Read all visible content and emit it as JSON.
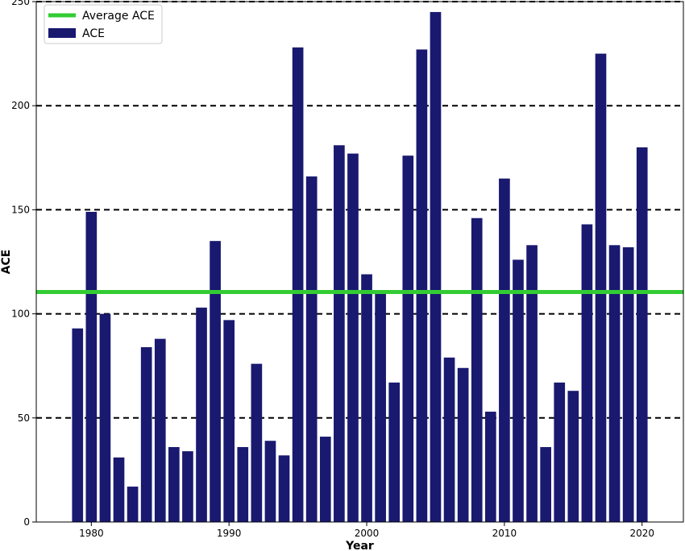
{
  "chart_data": {
    "type": "bar",
    "xlabel": "Year",
    "ylabel": "ACE",
    "xlim": [
      1976,
      2023
    ],
    "ylim": [
      0,
      250
    ],
    "xticks": [
      1980,
      1990,
      2000,
      2010,
      2020
    ],
    "yticks": [
      0,
      50,
      100,
      150,
      200,
      250
    ],
    "grid": "horizontal dashed",
    "legend_position": "top-left",
    "average": {
      "name": "Average ACE",
      "value": 110.5,
      "color": "#33cc33"
    },
    "series": [
      {
        "name": "ACE",
        "color": "#191970",
        "x": [
          1979,
          1980,
          1981,
          1982,
          1983,
          1984,
          1985,
          1986,
          1987,
          1988,
          1989,
          1990,
          1991,
          1992,
          1993,
          1994,
          1995,
          1996,
          1997,
          1998,
          1999,
          2000,
          2001,
          2002,
          2003,
          2004,
          2005,
          2006,
          2007,
          2008,
          2009,
          2010,
          2011,
          2012,
          2013,
          2014,
          2015,
          2016,
          2017,
          2018,
          2019,
          2020
        ],
        "values": [
          93,
          149,
          100,
          31,
          17,
          84,
          88,
          36,
          34,
          103,
          135,
          97,
          36,
          76,
          39,
          32,
          228,
          166,
          41,
          181,
          177,
          119,
          110,
          67,
          176,
          227,
          245,
          79,
          74,
          146,
          53,
          165,
          126,
          133,
          36,
          67,
          63,
          143,
          225,
          133,
          132,
          180
        ]
      }
    ]
  }
}
